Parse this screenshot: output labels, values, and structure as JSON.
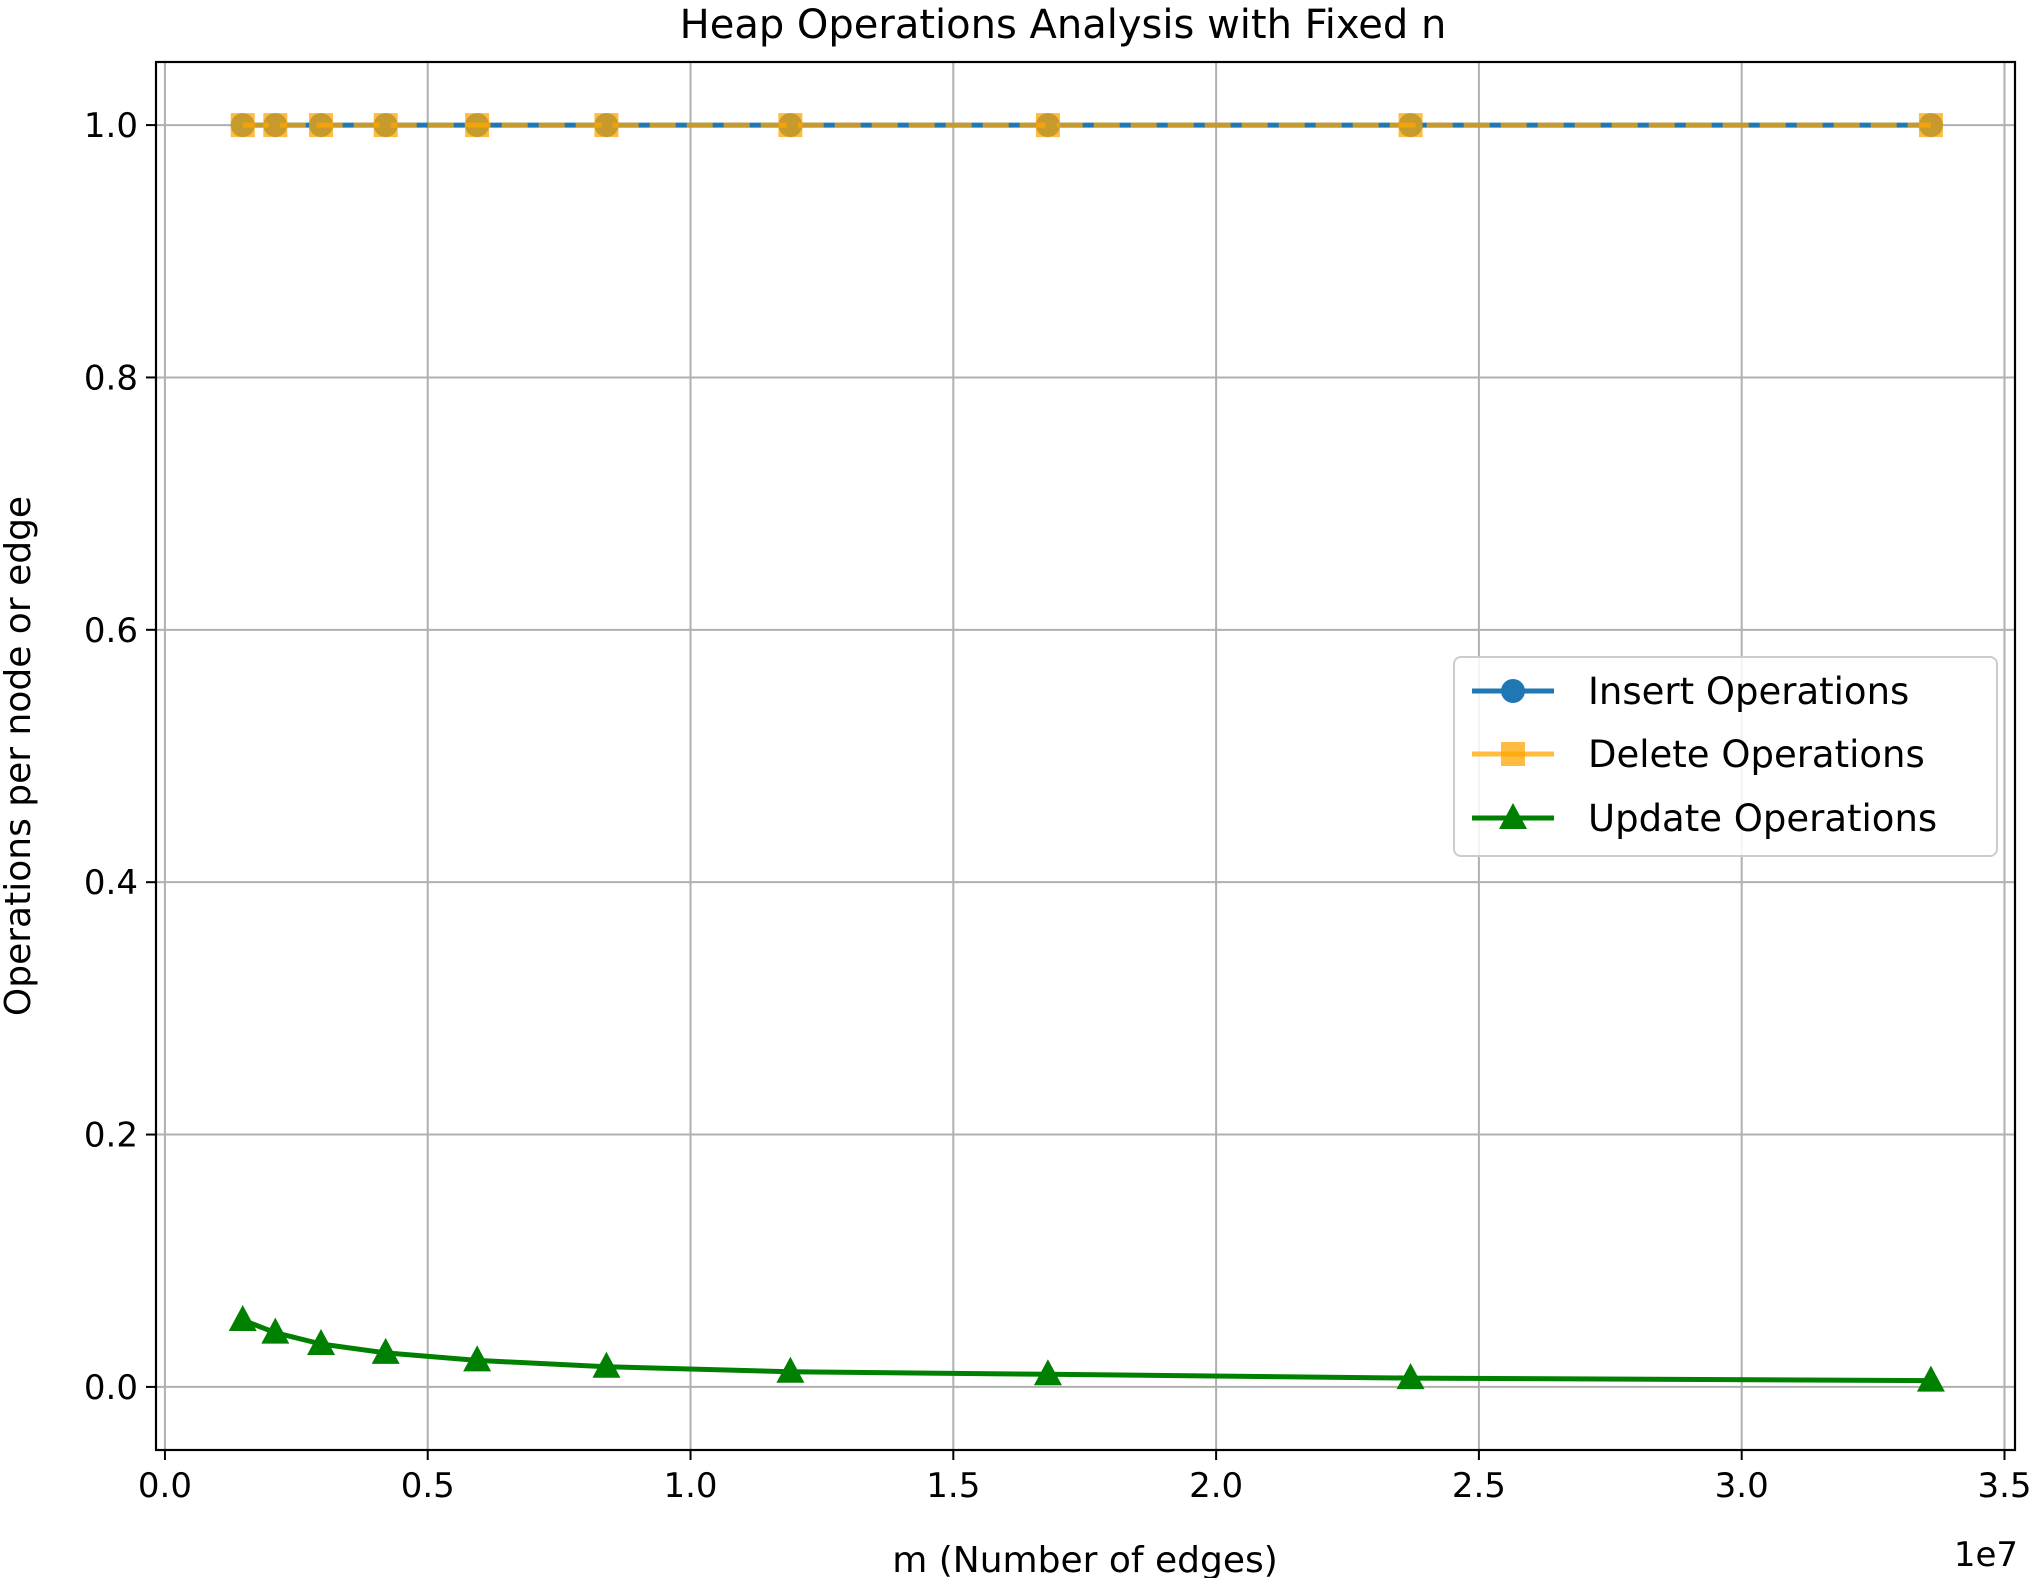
{
  "chart_data": {
    "type": "line",
    "title": "Heap Operations Analysis with Fixed n",
    "xlabel": "m (Number of edges)",
    "ylabel": "Operations per node or edge",
    "x_offset_label": "1e7",
    "x_tick_values": [
      0.0,
      0.5,
      1.0,
      1.5,
      2.0,
      2.5,
      3.0,
      3.5
    ],
    "x_tick_labels": [
      "0.0",
      "0.5",
      "1.0",
      "1.5",
      "2.0",
      "2.5",
      "3.0",
      "3.5"
    ],
    "y_tick_values": [
      0.0,
      0.2,
      0.4,
      0.6,
      0.8,
      1.0
    ],
    "y_tick_labels": [
      "0.0",
      "0.2",
      "0.4",
      "0.6",
      "0.8",
      "1.0"
    ],
    "xlim": [
      -0.017,
      3.52
    ],
    "ylim": [
      -0.05,
      1.05
    ],
    "grid": true,
    "legend_position": "center-right",
    "x": [
      0.148,
      0.21,
      0.297,
      0.42,
      0.594,
      0.84,
      1.19,
      1.68,
      2.37,
      3.36
    ],
    "series": [
      {
        "name": "Insert Operations",
        "color": "#1f77b4",
        "marker": "circle",
        "line_style": "solid",
        "values": [
          1.0,
          1.0,
          1.0,
          1.0,
          1.0,
          1.0,
          1.0,
          1.0,
          1.0,
          1.0
        ]
      },
      {
        "name": "Delete Operations",
        "color": "#ffa500",
        "marker": "square",
        "line_style": "dashed",
        "values": [
          1.0,
          1.0,
          1.0,
          1.0,
          1.0,
          1.0,
          1.0,
          1.0,
          1.0,
          1.0
        ]
      },
      {
        "name": "Update Operations",
        "color": "#008000",
        "marker": "triangle",
        "line_style": "solid",
        "values": [
          0.053,
          0.043,
          0.034,
          0.027,
          0.021,
          0.016,
          0.012,
          0.01,
          0.007,
          0.005
        ]
      }
    ]
  }
}
